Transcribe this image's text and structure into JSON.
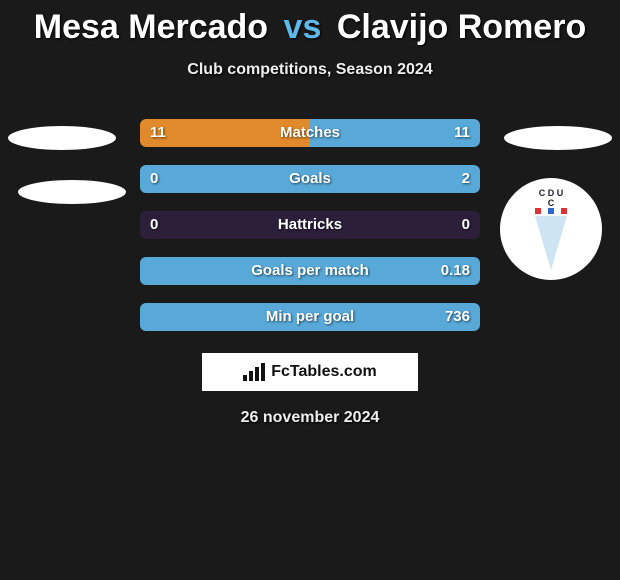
{
  "title": {
    "p1": "Mesa Mercado",
    "vs": "vs",
    "p2": "Clavijo Romero"
  },
  "subtitle": "Club competitions, Season 2024",
  "colors": {
    "left": "#e08a2b",
    "right": "#58a8d8",
    "row_bg": "#2c1f3a",
    "bg": "#1a1a1a"
  },
  "rows": [
    {
      "label": "Matches",
      "left": "11",
      "right": "11",
      "fill_left_pct": 50,
      "fill_right_pct": 50
    },
    {
      "label": "Goals",
      "left": "0",
      "right": "2",
      "fill_left_pct": 0,
      "fill_right_pct": 100
    },
    {
      "label": "Hattricks",
      "left": "0",
      "right": "0",
      "fill_left_pct": 0,
      "fill_right_pct": 0
    },
    {
      "label": "Goals per match",
      "left": "",
      "right": "0.18",
      "fill_left_pct": 0,
      "fill_right_pct": 100
    },
    {
      "label": "Min per goal",
      "left": "",
      "right": "736",
      "fill_left_pct": 0,
      "fill_right_pct": 100
    }
  ],
  "logo": {
    "text": "FcTables.com"
  },
  "date": "26 november 2024",
  "club_badge": {
    "letters": "C D U C",
    "stripe_colors": [
      "#d33",
      "#fff",
      "#36c",
      "#fff",
      "#d33"
    ]
  }
}
